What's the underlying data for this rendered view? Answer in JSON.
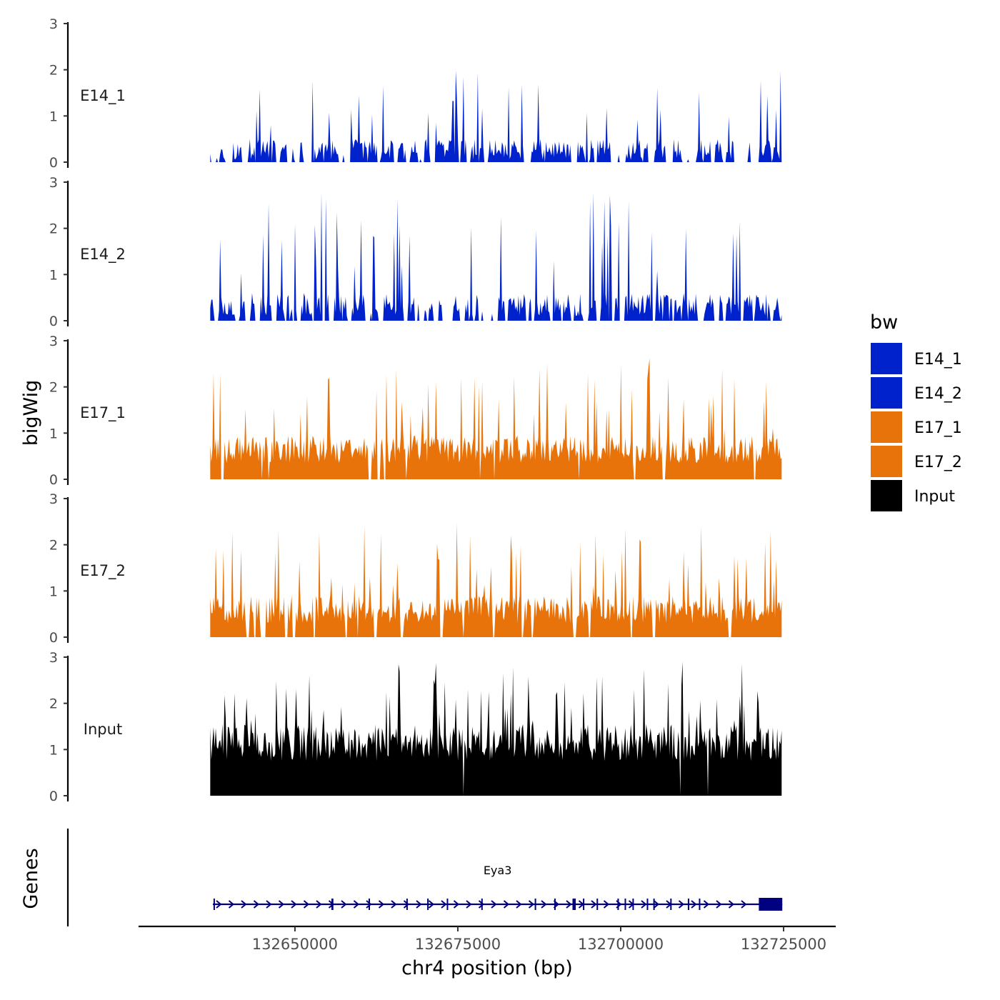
{
  "chart_data": {
    "type": "area",
    "xlabel": "chr4 position (bp)",
    "ylabel": "bigWig",
    "gene_panel_label": "Genes",
    "xlim": [
      132626000,
      132733000
    ],
    "data_range": [
      132637000,
      132724700
    ],
    "x_ticks": [
      132650000,
      132675000,
      132700000,
      132725000
    ],
    "x_tick_labels": [
      "132650000",
      "132675000",
      "132700000",
      "132725000"
    ],
    "ylim": [
      0,
      3
    ],
    "y_ticks": [
      0,
      1,
      2,
      3
    ],
    "y_tick_labels": [
      "0",
      "1",
      "2",
      "3"
    ],
    "legend_title": "bw",
    "legend": [
      {
        "label": "E14_1",
        "color": "#0022cc"
      },
      {
        "label": "E14_2",
        "color": "#0022cc"
      },
      {
        "label": "E17_1",
        "color": "#e8730a"
      },
      {
        "label": "E17_2",
        "color": "#e8730a"
      },
      {
        "label": "Input",
        "color": "#000000"
      }
    ],
    "series": [
      {
        "name": "E14_1",
        "color": "#0022cc",
        "seed": 11,
        "n": 520,
        "base": 0.05,
        "spread": 0.45,
        "peak_prob": 0.09,
        "peak_height": [
          0.8,
          2.0
        ],
        "zero_prob": 0.16,
        "zero_run": 6
      },
      {
        "name": "E14_2",
        "color": "#0022cc",
        "seed": 23,
        "n": 520,
        "base": 0.1,
        "spread": 0.5,
        "peak_prob": 0.1,
        "peak_height": [
          1.0,
          2.8
        ],
        "zero_prob": 0.12,
        "zero_run": 5
      },
      {
        "name": "E17_1",
        "color": "#e8730a",
        "seed": 37,
        "n": 520,
        "base": 0.35,
        "spread": 0.6,
        "peak_prob": 0.1,
        "peak_height": [
          1.0,
          2.7
        ],
        "zero_prob": 0.03,
        "zero_run": 3
      },
      {
        "name": "E17_2",
        "color": "#e8730a",
        "seed": 51,
        "n": 520,
        "base": 0.3,
        "spread": 0.6,
        "peak_prob": 0.11,
        "peak_height": [
          1.0,
          2.5
        ],
        "zero_prob": 0.05,
        "zero_run": 3
      },
      {
        "name": "Input",
        "color": "#000000",
        "seed": 73,
        "n": 520,
        "base": 0.75,
        "spread": 0.8,
        "peak_prob": 0.1,
        "peak_height": [
          1.6,
          2.9
        ],
        "zero_prob": 0.008,
        "zero_run": 2
      }
    ],
    "genes": [
      {
        "name": "Eya3",
        "strand": "+",
        "color": "#000080",
        "start": 132637400,
        "end": 132724800,
        "exons": [
          [
            132637500,
            132637700
          ],
          [
            132655600,
            132655900
          ],
          [
            132661300,
            132661500
          ],
          [
            132667100,
            132667300
          ],
          [
            132670300,
            132670500
          ],
          [
            132673300,
            132673500
          ],
          [
            132678600,
            132678800
          ],
          [
            132686800,
            132687000
          ],
          [
            132689800,
            132690000
          ],
          [
            132692600,
            132693100
          ],
          [
            132694200,
            132694400
          ],
          [
            132696300,
            132696500
          ],
          [
            132699500,
            132699700
          ],
          [
            132700600,
            132700800
          ],
          [
            132701800,
            132702000
          ],
          [
            132704000,
            132704200
          ],
          [
            132705000,
            132705200
          ],
          [
            132707600,
            132707800
          ],
          [
            132710300,
            132710500
          ],
          [
            132712000,
            132712200
          ],
          [
            132721200,
            132724800
          ]
        ]
      }
    ]
  }
}
